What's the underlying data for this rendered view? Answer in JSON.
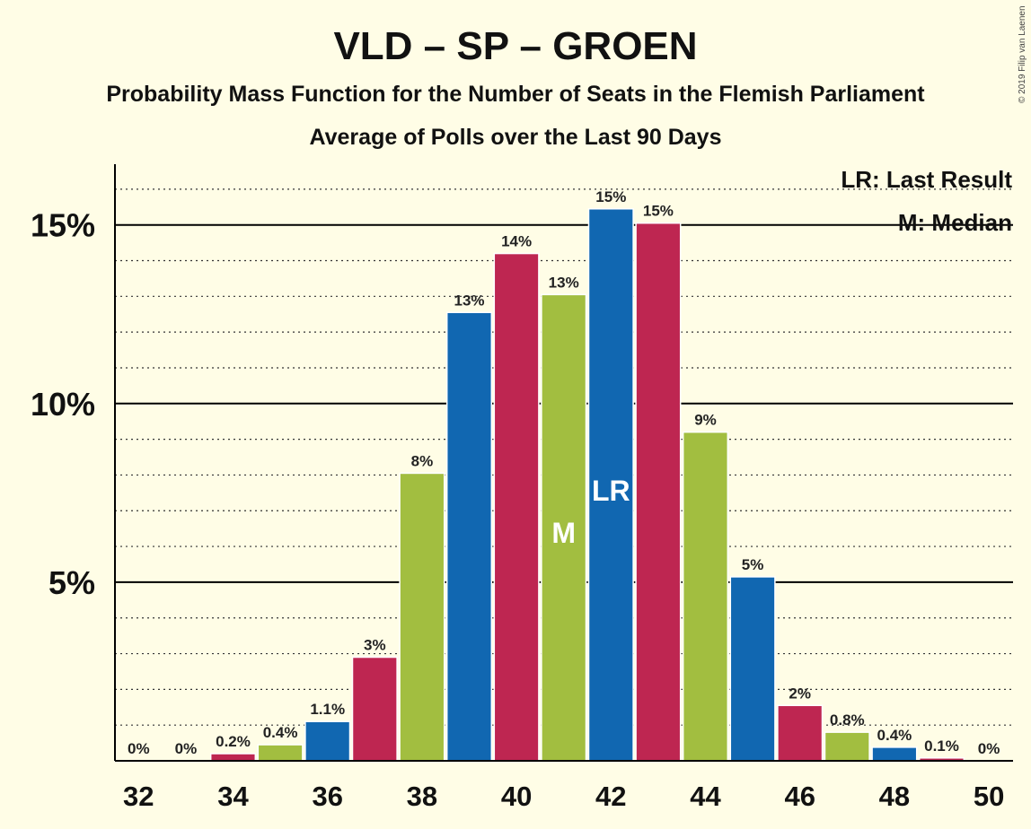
{
  "copyright": "© 2019 Filip van Laenen",
  "legend": {
    "last_result": "LR: Last Result",
    "median": "M: Median"
  },
  "colors": {
    "background": "#FFFDE6",
    "blue": "#1167B1",
    "red": "#BE2651",
    "green": "#A2BE40"
  },
  "chart_data": {
    "type": "bar",
    "title": "VLD – SP – GROEN",
    "subtitle": "Probability Mass Function for the Number of Seats in the Flemish Parliament",
    "subtitle2": "Average of Polls over the Last 90 Days",
    "xlabel": "",
    "ylabel": "",
    "x": [
      32,
      33,
      34,
      35,
      36,
      37,
      38,
      39,
      40,
      41,
      42,
      43,
      44,
      45,
      46,
      47,
      48,
      49,
      50
    ],
    "values": [
      0,
      0,
      0.2,
      0.45,
      1.1,
      2.9,
      8.05,
      12.55,
      14.2,
      13.05,
      15.45,
      15.05,
      9.2,
      5.15,
      1.55,
      0.8,
      0.38,
      0.08,
      0
    ],
    "data_labels": [
      "0%",
      "0%",
      "0.2%",
      "0.4%",
      "1.1%",
      "3%",
      "8%",
      "13%",
      "14%",
      "13%",
      "15%",
      "15%",
      "9%",
      "5%",
      "2%",
      "0.8%",
      "0.4%",
      "0.1%",
      "0%"
    ],
    "bar_colors": [
      "blue",
      "red",
      "red",
      "green",
      "blue",
      "red",
      "green",
      "blue",
      "red",
      "green",
      "blue",
      "red",
      "green",
      "blue",
      "red",
      "green",
      "blue",
      "red",
      "green"
    ],
    "ylim": [
      0,
      16.7
    ],
    "yticks": [
      5,
      10,
      15
    ],
    "ytick_labels": [
      "5%",
      "10%",
      "15%"
    ],
    "xticks": [
      32,
      34,
      36,
      38,
      40,
      42,
      44,
      46,
      48,
      50
    ],
    "xtick_labels": [
      "32",
      "34",
      "36",
      "38",
      "40",
      "42",
      "44",
      "46",
      "48",
      "50"
    ],
    "minor_grid_step": 1,
    "median_seat": 41,
    "median_marker": "M",
    "last_result_seat": 42,
    "last_result_marker": "LR",
    "legend_position": "top-right",
    "grid": true
  }
}
